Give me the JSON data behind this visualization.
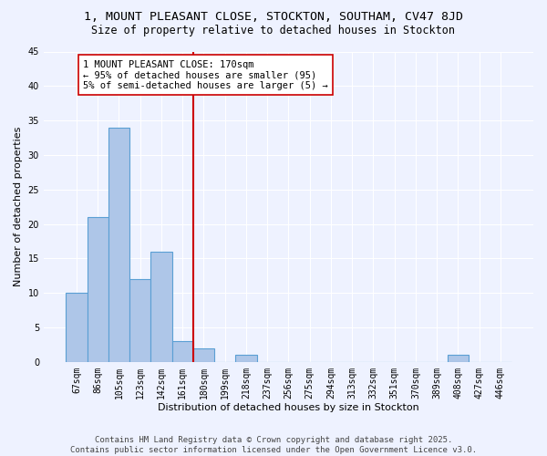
{
  "title_line1": "1, MOUNT PLEASANT CLOSE, STOCKTON, SOUTHAM, CV47 8JD",
  "title_line2": "Size of property relative to detached houses in Stockton",
  "xlabel": "Distribution of detached houses by size in Stockton",
  "ylabel": "Number of detached properties",
  "bar_labels": [
    "67sqm",
    "86sqm",
    "105sqm",
    "123sqm",
    "142sqm",
    "161sqm",
    "180sqm",
    "199sqm",
    "218sqm",
    "237sqm",
    "256sqm",
    "275sqm",
    "294sqm",
    "313sqm",
    "332sqm",
    "351sqm",
    "370sqm",
    "389sqm",
    "408sqm",
    "427sqm",
    "446sqm"
  ],
  "bar_values": [
    10,
    21,
    34,
    12,
    16,
    3,
    2,
    0,
    1,
    0,
    0,
    0,
    0,
    0,
    0,
    0,
    0,
    0,
    1,
    0,
    0
  ],
  "bar_color": "#aec6e8",
  "bar_edgecolor": "#5a9fd4",
  "vline_x": 6,
  "vline_color": "#cc0000",
  "annotation_text": "1 MOUNT PLEASANT CLOSE: 170sqm\n← 95% of detached houses are smaller (95)\n5% of semi-detached houses are larger (5) →",
  "annotation_box_edgecolor": "#cc0000",
  "annotation_box_facecolor": "#ffffff",
  "ylim": [
    0,
    45
  ],
  "yticks": [
    0,
    5,
    10,
    15,
    20,
    25,
    30,
    35,
    40,
    45
  ],
  "background_color": "#eef2ff",
  "grid_color": "#ffffff",
  "footer_text": "Contains HM Land Registry data © Crown copyright and database right 2025.\nContains public sector information licensed under the Open Government Licence v3.0.",
  "title_fontsize": 9.5,
  "subtitle_fontsize": 8.5,
  "axis_label_fontsize": 8,
  "tick_fontsize": 7,
  "annotation_fontsize": 7.5,
  "footer_fontsize": 6.5
}
